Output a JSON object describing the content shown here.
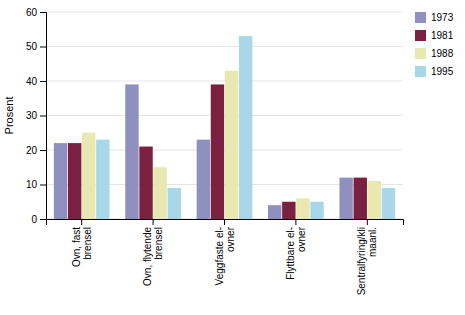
{
  "chart_data": {
    "type": "bar",
    "categories": [
      "Ovn, fast\nbrensel",
      "Ovn, flytende\nbrensel",
      "Veggfaste el-\novner",
      "Flyttbare el-\novner",
      "Sentralfyring/kli\nmaanl."
    ],
    "series": [
      {
        "name": "1973",
        "color": "#9090c0",
        "values": [
          22,
          39,
          23,
          4,
          12
        ]
      },
      {
        "name": "1981",
        "color": "#7a2040",
        "values": [
          22,
          21,
          39,
          5,
          12
        ]
      },
      {
        "name": "1988",
        "color": "#e8e8b0",
        "values": [
          25,
          15,
          43,
          6,
          11
        ]
      },
      {
        "name": "1995",
        "color": "#a8d8e8",
        "values": [
          23,
          9,
          53,
          5,
          9
        ]
      }
    ],
    "ylabel": "Prosent",
    "ylim": [
      0,
      60
    ],
    "yticks": [
      0,
      10,
      20,
      30,
      40,
      50,
      60
    ],
    "grid": true,
    "legend": "right"
  }
}
